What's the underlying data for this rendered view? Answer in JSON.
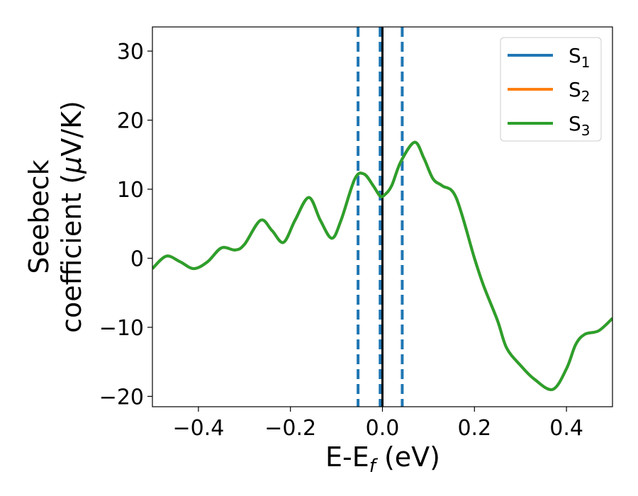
{
  "chart_data": {
    "type": "line",
    "title": "",
    "xlabel": "E-E",
    "xlabel_sub": "f",
    "xlabel_unit": " (eV)",
    "ylabel_line1": "Seebeck",
    "ylabel_line2": "coefficient  (",
    "ylabel_mu": "μ",
    "ylabel_unit": "V/K)",
    "xlim": [
      -0.5,
      0.5
    ],
    "ylim": [
      -21.5,
      33.5
    ],
    "xticks": [
      -0.4,
      -0.2,
      0.0,
      0.2,
      0.4
    ],
    "xtick_labels": [
      "−0.4",
      "−0.2",
      "0.0",
      "0.2",
      "0.4"
    ],
    "yticks": [
      -20,
      -10,
      0,
      10,
      20,
      30
    ],
    "ytick_labels": [
      "−20",
      "−10",
      "0",
      "10",
      "20",
      "30"
    ],
    "grid": false,
    "legend_position": "top-right",
    "vlines": [
      {
        "x": -0.053,
        "style": "dashed",
        "color": "#1f77b4"
      },
      {
        "x": -0.005,
        "style": "dashed",
        "color": "#1f77b4"
      },
      {
        "x": 0.0,
        "style": "solid",
        "color": "#000000"
      },
      {
        "x": 0.043,
        "style": "dashed",
        "color": "#1f77b4"
      }
    ],
    "x": [
      -0.5,
      -0.47,
      -0.44,
      -0.41,
      -0.38,
      -0.35,
      -0.32,
      -0.3,
      -0.265,
      -0.24,
      -0.215,
      -0.19,
      -0.16,
      -0.135,
      -0.11,
      -0.09,
      -0.06,
      -0.04,
      -0.02,
      -0.005,
      0.005,
      0.02,
      0.04,
      0.07,
      0.09,
      0.11,
      0.13,
      0.16,
      0.2,
      0.22,
      0.25,
      0.27,
      0.3,
      0.33,
      0.37,
      0.4,
      0.42,
      0.44,
      0.47,
      0.5
    ],
    "series": [
      {
        "name": "S",
        "sub": "1",
        "color": "#1f77b4",
        "values": [
          -1.5,
          0.3,
          -0.5,
          -1.5,
          -0.5,
          1.5,
          1.2,
          2.0,
          5.5,
          4.0,
          2.3,
          5.5,
          8.8,
          5.5,
          2.9,
          5.5,
          11.5,
          12.2,
          10.5,
          9.0,
          9.2,
          10.5,
          14.0,
          16.8,
          14.5,
          11.5,
          10.5,
          8.8,
          0.0,
          -4.0,
          -9.0,
          -13.0,
          -15.5,
          -17.5,
          -19.0,
          -16.0,
          -12.5,
          -11.0,
          -10.5,
          -8.7
        ]
      },
      {
        "name": "S",
        "sub": "2",
        "color": "#ff7f0e",
        "values": [
          -1.5,
          0.3,
          -0.5,
          -1.5,
          -0.5,
          1.5,
          1.2,
          2.0,
          5.5,
          4.0,
          2.3,
          5.5,
          8.8,
          5.5,
          2.9,
          5.5,
          11.5,
          12.2,
          10.5,
          9.0,
          9.2,
          10.5,
          14.0,
          16.8,
          14.5,
          11.5,
          10.5,
          8.8,
          0.0,
          -4.0,
          -9.0,
          -13.0,
          -15.5,
          -17.5,
          -19.0,
          -16.0,
          -12.5,
          -11.0,
          -10.5,
          -8.7
        ]
      },
      {
        "name": "S",
        "sub": "3",
        "color": "#2ca02c",
        "values": [
          -1.5,
          0.3,
          -0.5,
          -1.5,
          -0.5,
          1.5,
          1.2,
          2.0,
          5.5,
          4.0,
          2.3,
          5.5,
          8.8,
          5.5,
          2.9,
          5.5,
          11.5,
          12.2,
          10.5,
          9.0,
          9.2,
          10.5,
          14.0,
          16.8,
          14.5,
          11.5,
          10.5,
          8.8,
          0.0,
          -4.0,
          -9.0,
          -13.0,
          -15.5,
          -17.5,
          -19.0,
          -16.0,
          -12.5,
          -11.0,
          -10.5,
          -8.7
        ]
      }
    ]
  }
}
